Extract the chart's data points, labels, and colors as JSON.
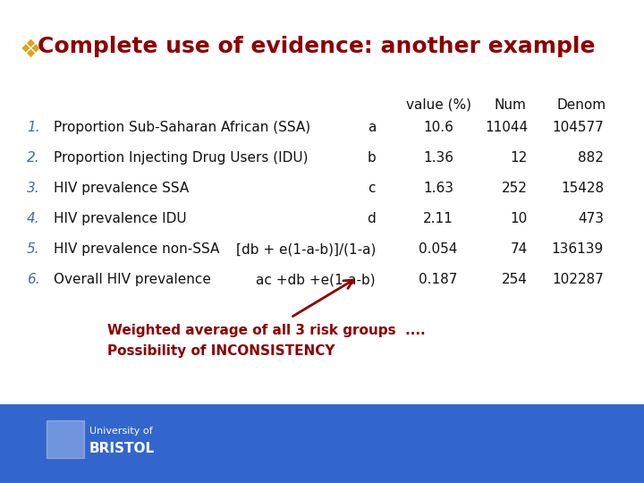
{
  "title": "Complete use of evidence: another example",
  "title_color": "#8B0000",
  "background_color": "#FFFFFF",
  "footer_color": "#3366CC",
  "rows": [
    {
      "num": "1.",
      "desc": "Proportion Sub-Saharan African (SSA)",
      "formula": "a",
      "value": "10.6",
      "n": "11044",
      "denom": "104577"
    },
    {
      "num": "2.",
      "desc": "Proportion Injecting Drug Users (IDU)",
      "formula": "b",
      "value": "1.36",
      "n": "12",
      "denom": "882"
    },
    {
      "num": "3.",
      "desc": "HIV prevalence SSA",
      "formula": "c",
      "value": "1.63",
      "n": "252",
      "denom": "15428"
    },
    {
      "num": "4.",
      "desc": "HIV prevalence IDU",
      "formula": "d",
      "value": "2.11",
      "n": "10",
      "denom": "473"
    },
    {
      "num": "5.",
      "desc": "HIV prevalence non-SSA",
      "formula": "[db + e(1-a-b)]/(1-a)",
      "value": "0.054",
      "n": "74",
      "denom": "136139"
    },
    {
      "num": "6.",
      "desc": "Overall HIV prevalence",
      "formula": "ac +db +e(1-a-b)",
      "value": "0.187",
      "n": "254",
      "denom": "102287"
    }
  ],
  "num_color": "#4169AA",
  "text_color": "#111111",
  "annotation_text1": "Weighted average of all 3 risk groups  ....",
  "annotation_text2": "Possibility of INCONSISTENCY",
  "annotation_color": "#8B0000",
  "icon_color": "#DAA520",
  "header_value": "value (%)",
  "header_num": "Num",
  "header_denom": "Denom"
}
